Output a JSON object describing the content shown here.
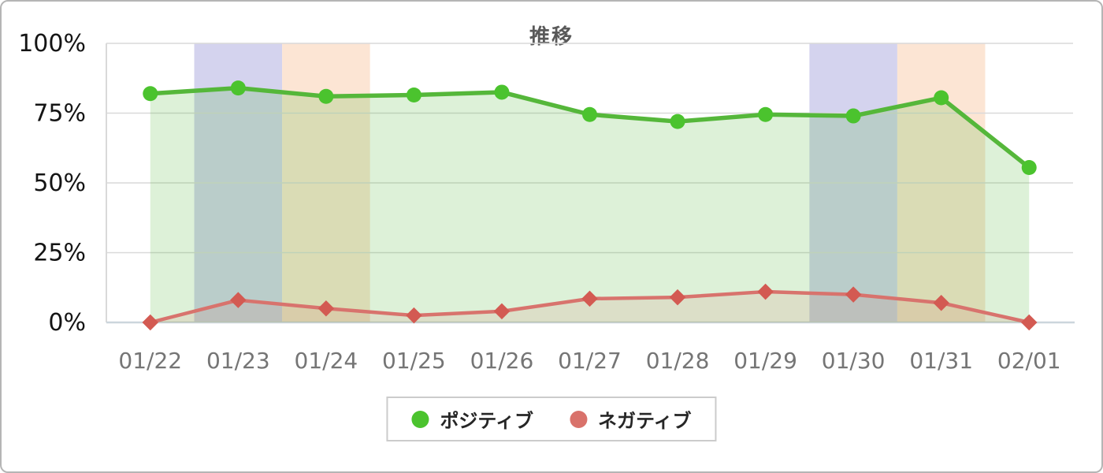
{
  "chart_data": {
    "type": "line",
    "title": "推移",
    "x": [
      "01/22",
      "01/23",
      "01/24",
      "01/25",
      "01/26",
      "01/27",
      "01/28",
      "01/29",
      "01/30",
      "01/31",
      "02/01"
    ],
    "y_ticks": [
      {
        "label": "100%",
        "value": 100
      },
      {
        "label": "75%",
        "value": 75
      },
      {
        "label": "50%",
        "value": 50
      },
      {
        "label": "25%",
        "value": 25
      },
      {
        "label": "0%",
        "value": 0
      }
    ],
    "ylim": [
      0,
      100
    ],
    "grid": true,
    "legend_position": "bottom",
    "series": [
      {
        "name": "ポジティブ",
        "marker": "circle",
        "line_color": "#55b73a",
        "point_color": "#4bc32e",
        "fill_color": "rgba(85,183,58,0.2)",
        "values": [
          82,
          84,
          81,
          81.5,
          82.5,
          74.5,
          72,
          74.5,
          74,
          80.5,
          55.5
        ]
      },
      {
        "name": "ネガティブ",
        "marker": "diamond",
        "line_color": "#d8736d",
        "point_color": "#d35a52",
        "fill_color": "rgba(216,100,92,0.12)",
        "values": [
          0,
          8,
          5,
          2.5,
          4,
          8.5,
          9,
          11,
          10,
          7,
          0
        ]
      }
    ],
    "highlight_bands": [
      {
        "date": "01/23",
        "color": "#d4d3ee"
      },
      {
        "date": "01/24",
        "color": "#fce5d4"
      },
      {
        "date": "01/30",
        "color": "#d4d3ee"
      },
      {
        "date": "01/31",
        "color": "#fce5d4"
      }
    ],
    "colors": {
      "gridline": "#d9d9d9",
      "axis_left_border": "#d9d9d9",
      "axis_baseline": "#ccd6dc",
      "y_tick_text": "#141414",
      "x_tick_text": "#757575",
      "title_text": "#595959"
    }
  },
  "legend": {
    "items": [
      {
        "label": "ポジティブ",
        "color": "#4bc32e"
      },
      {
        "label": "ネガティブ",
        "color": "#d9726b"
      }
    ]
  }
}
